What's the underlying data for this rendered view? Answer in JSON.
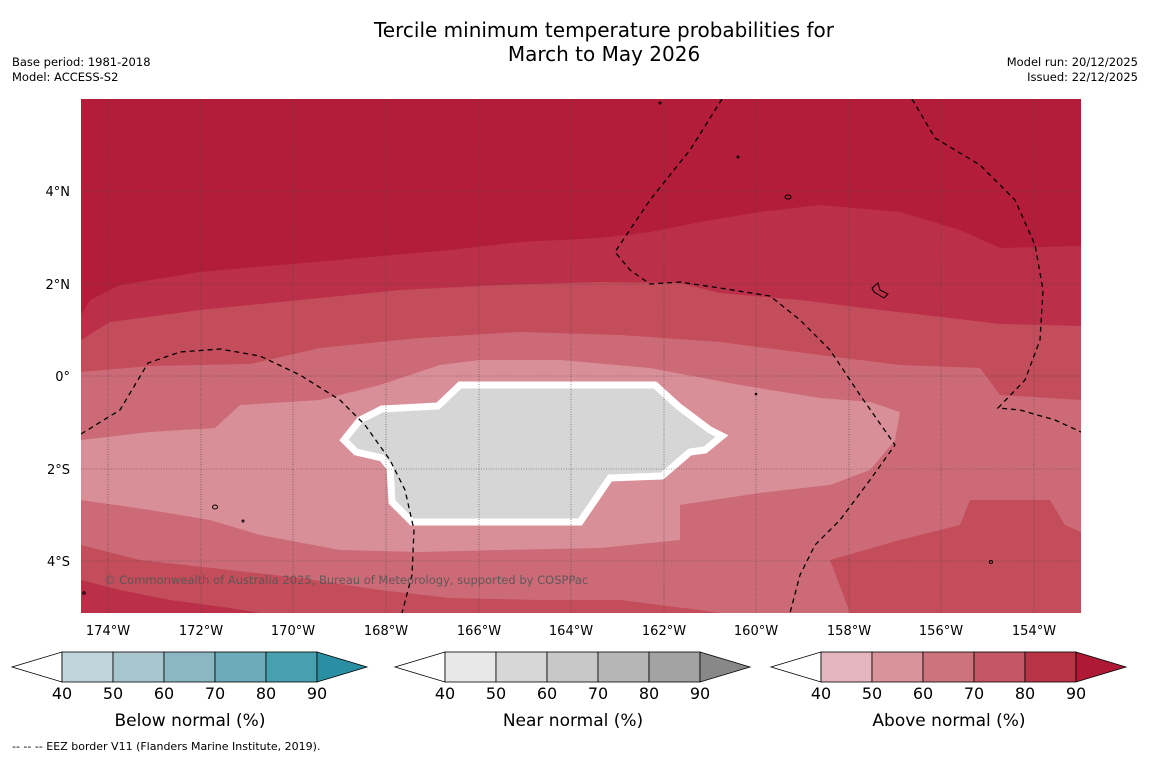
{
  "title": {
    "line1": "Tercile minimum temperature probabilities for",
    "line2": "March to May 2026"
  },
  "meta_left": {
    "base_period": "Base period: 1981-2018",
    "model": "Model: ACCESS-S2"
  },
  "meta_right": {
    "model_run": "Model run: 20/12/2025",
    "issued": "Issued: 22/12/2025"
  },
  "map": {
    "lat_labels": [
      "4°N",
      "2°N",
      "0°",
      "2°S",
      "4°S"
    ],
    "lon_labels": [
      "174°W",
      "172°W",
      "170°W",
      "168°W",
      "166°W",
      "164°W",
      "162°W",
      "160°W",
      "158°W",
      "156°W",
      "154°W"
    ],
    "copyright": "© Commonwealth of Australia 2025, Bureau of Meteorology, supported by COSPPac",
    "colors": {
      "above_90": "#b31d3a",
      "above_80": "#bb3048",
      "above_70": "#c44d5b",
      "above_60": "#cc6b77",
      "above_50": "#d88f98",
      "near_normal": "#d6d6d6",
      "land": "#000000"
    }
  },
  "colorbars": [
    {
      "label": "Below normal (%)",
      "ticks": [
        "40",
        "50",
        "60",
        "70",
        "80",
        "90"
      ],
      "colors": [
        "#bfd6dd",
        "#a8c6ce",
        "#8bb7c2",
        "#6cabb9",
        "#47a0b0",
        "#2a8fa3"
      ]
    },
    {
      "label": "Near normal (%)",
      "ticks": [
        "40",
        "50",
        "60",
        "70",
        "80",
        "90"
      ],
      "colors": [
        "#e8e8e8",
        "#d7d7d7",
        "#c8c8c8",
        "#b6b6b6",
        "#a3a3a3",
        "#888888"
      ]
    },
    {
      "label": "Above normal (%)",
      "ticks": [
        "40",
        "50",
        "60",
        "70",
        "80",
        "90"
      ],
      "colors": [
        "#e3b7bd",
        "#d9939b",
        "#cd737d",
        "#c35763",
        "#b93346",
        "#ae1a35"
      ]
    }
  ],
  "footnote": "-- -- -- EEZ border V11 (Flanders Marine Institute, 2019)."
}
